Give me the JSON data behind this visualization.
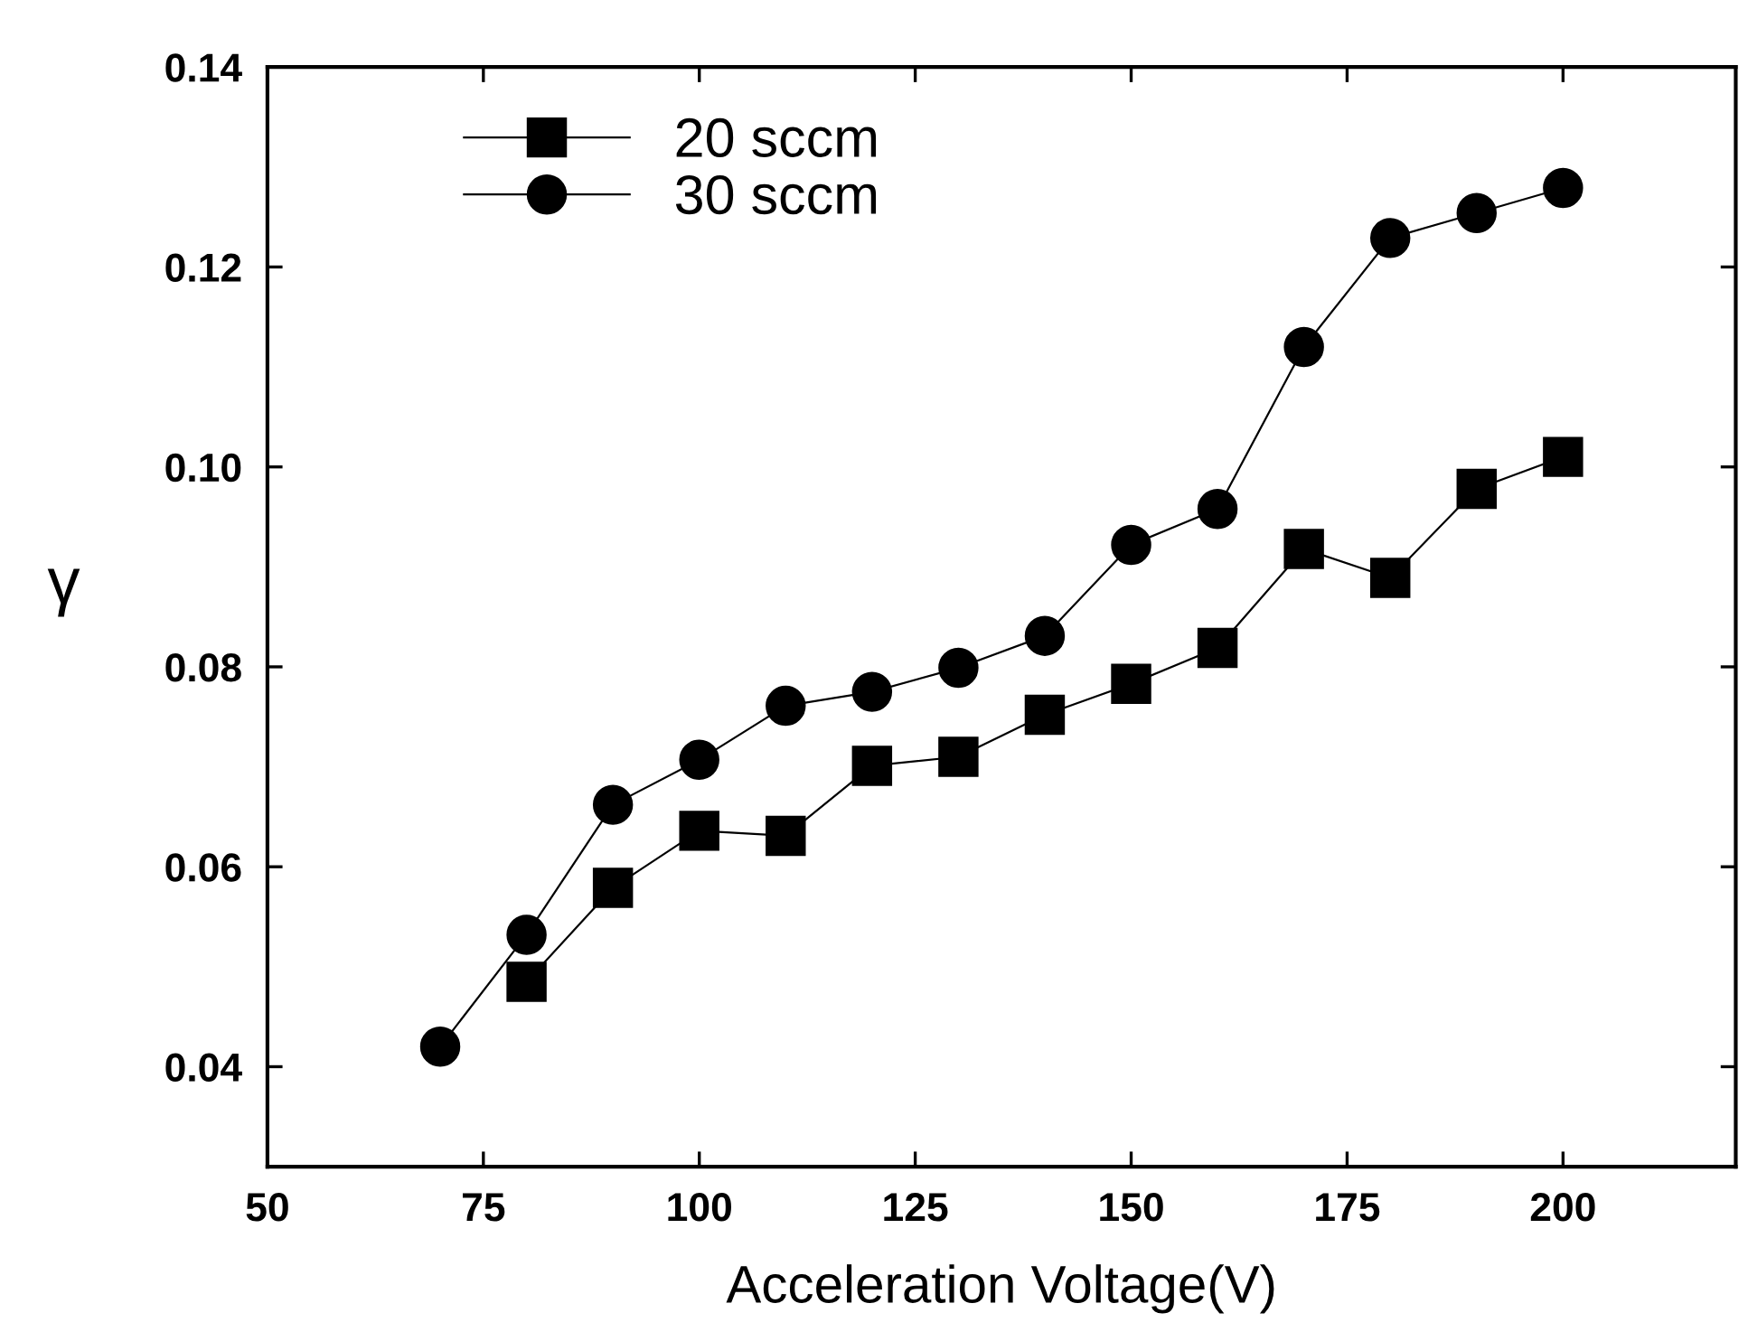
{
  "chart_data": {
    "type": "line",
    "xlabel": "Acceleration Voltage(V)",
    "ylabel": "γ",
    "xlim": [
      50,
      220
    ],
    "xticks": [
      50,
      75,
      100,
      125,
      150,
      175,
      200
    ],
    "ylim": [
      0.03,
      0.14
    ],
    "yticks": [
      0.04,
      0.06,
      0.08,
      {
        "value": 0.1,
        "label": "0.10"
      },
      0.12,
      0.14
    ],
    "grid": false,
    "legend": "top left",
    "line_style": "solid",
    "series": [
      {
        "name": "20 sccm",
        "color": "#000000",
        "marker": "square",
        "x": [
          80,
          90,
          100,
          110,
          120,
          130,
          140,
          150,
          160,
          170,
          180,
          190,
          200
        ],
        "values": [
          0.0485,
          0.0579,
          0.0636,
          0.0631,
          0.0701,
          0.071,
          0.0752,
          0.0783,
          0.0819,
          0.0918,
          0.0889,
          0.0978,
          0.101
        ]
      },
      {
        "name": "30 sccm",
        "color": "#000000",
        "marker": "circle",
        "x": [
          70,
          80,
          90,
          100,
          110,
          120,
          130,
          140,
          150,
          160,
          170,
          180,
          190,
          200
        ],
        "values": [
          0.042,
          0.0532,
          0.0662,
          0.0707,
          0.0761,
          0.0775,
          0.0799,
          0.0831,
          0.0922,
          0.0958,
          0.112,
          0.1229,
          0.1254,
          0.1279
        ]
      }
    ]
  }
}
